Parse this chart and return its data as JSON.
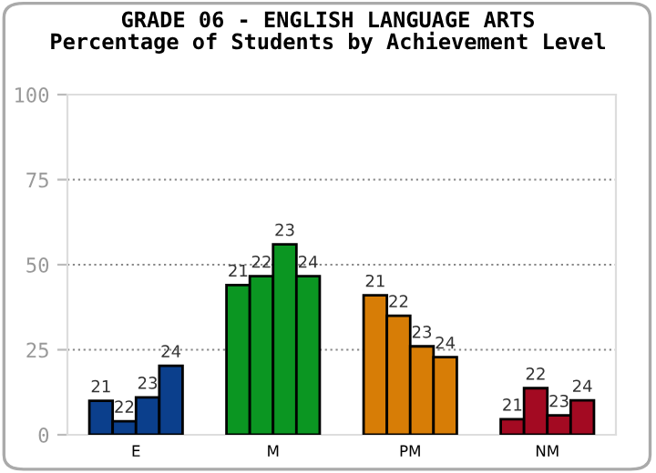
{
  "chart_data": {
    "type": "bar",
    "title": "GRADE 06 - ENGLISH LANGUAGE ARTS\nPercentage of Students by Achievement Level",
    "categories": [
      "E",
      "M",
      "PM",
      "NM"
    ],
    "series": [
      {
        "name": "21",
        "colors": [
          "#0b3f8c",
          "#0b9622",
          "#d77d06",
          "#a30a22"
        ],
        "values": [
          10,
          44,
          41,
          4.6
        ]
      },
      {
        "name": "22",
        "colors": [
          "#0b3f8c",
          "#0b9622",
          "#d77d06",
          "#a30a22"
        ],
        "values": [
          4,
          46.6,
          35,
          13.7
        ]
      },
      {
        "name": "23",
        "colors": [
          "#0b3f8c",
          "#0b9622",
          "#d77d06",
          "#a30a22"
        ],
        "values": [
          11,
          56,
          26,
          5.7
        ]
      },
      {
        "name": "24",
        "colors": [
          "#0b3f8c",
          "#0b9622",
          "#d77d06",
          "#a30a22"
        ],
        "values": [
          20.3,
          46.6,
          22.8,
          10.1
        ]
      }
    ],
    "ylim": [
      0,
      100
    ],
    "yticks": [
      0,
      25,
      50,
      75,
      100
    ],
    "grid": "y",
    "legend": false
  }
}
